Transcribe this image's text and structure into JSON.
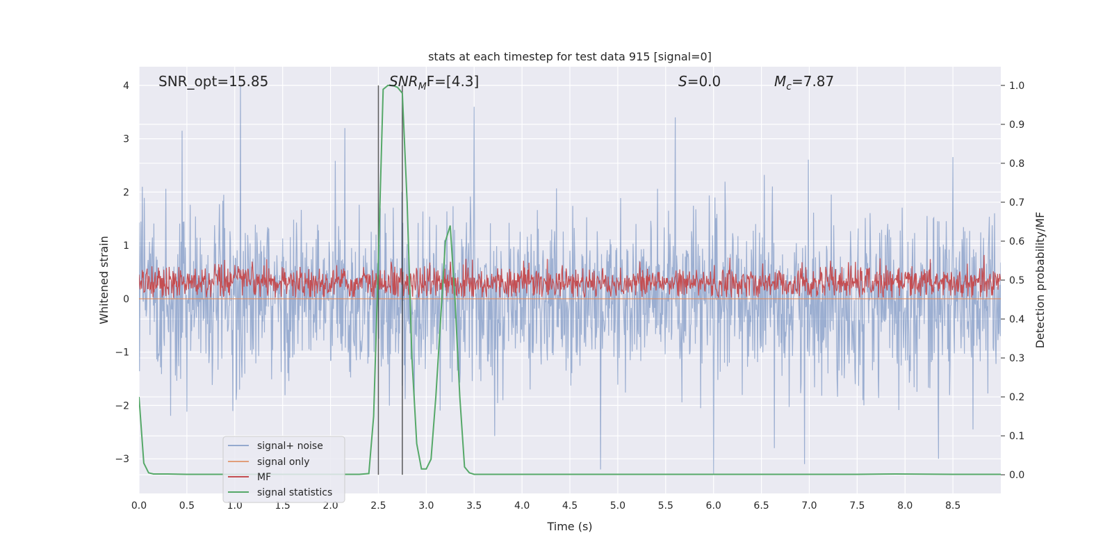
{
  "chart_data": {
    "type": "line",
    "title": "stats at each timestep for test data 915 [signal=0]",
    "xlabel": "Time (s)",
    "ylabel": "Whitened strain",
    "ylabel_right": "Detection probability/MF",
    "xlim": [
      0.0,
      9.0
    ],
    "ylim": [
      -3.65,
      4.35
    ],
    "ylim_right": [
      -0.048,
      1.048
    ],
    "xticks": [
      "0.0",
      "0.5",
      "1.0",
      "1.5",
      "2.0",
      "2.5",
      "3.0",
      "3.5",
      "4.0",
      "4.5",
      "5.0",
      "5.5",
      "6.0",
      "6.5",
      "7.0",
      "7.5",
      "8.0",
      "8.5"
    ],
    "yticks": [
      "4",
      "3",
      "2",
      "1",
      "0",
      "−1",
      "−2",
      "−3"
    ],
    "yticks_right": [
      "1.0",
      "0.9",
      "0.8",
      "0.7",
      "0.6",
      "0.5",
      "0.4",
      "0.3",
      "0.2",
      "0.1",
      "0.0"
    ],
    "grid": true,
    "legend_position": "lower-left",
    "annotations": {
      "snr_opt": "SNR_opt=15.85",
      "snr_mf_base": "SNR",
      "snr_mf_sub": "M",
      "snr_mf_rest": "F=[4.3]",
      "s_italic": "S",
      "s_rest": "=0.0",
      "mc_base": "M",
      "mc_sub": "c",
      "mc_rest": "=7.87"
    },
    "vlines": [
      2.5,
      2.75
    ],
    "series": [
      {
        "name": "signal+ noise",
        "color": "#4c72b0",
        "description_levels": {
          "typical_max": 1.8,
          "typical_min": -1.9,
          "peaks": [
            [
              1.06,
              4.0
            ],
            [
              5.6,
              3.4
            ],
            [
              3.5,
              3.6
            ],
            [
              2.15,
              3.2
            ],
            [
              0.45,
              3.15
            ],
            [
              6.0,
              -3.3
            ],
            [
              4.82,
              -3.2
            ],
            [
              6.95,
              -3.1
            ],
            [
              8.35,
              -3.0
            ]
          ]
        }
      },
      {
        "name": "signal only",
        "color": "#dd8452",
        "constant": 0.0
      },
      {
        "name": "MF",
        "color": "#c44e52",
        "baseline": 0.3,
        "spread": 0.35
      },
      {
        "name": "signal statistics",
        "color": "#55a868",
        "axis": "right",
        "x": [
          0.0,
          0.05,
          0.1,
          0.15,
          0.2,
          0.3,
          0.5,
          1.0,
          1.5,
          2.0,
          2.3,
          2.4,
          2.45,
          2.5,
          2.55,
          2.6,
          2.65,
          2.7,
          2.75,
          2.8,
          2.85,
          2.9,
          2.95,
          3.0,
          3.05,
          3.1,
          3.15,
          3.2,
          3.25,
          3.3,
          3.35,
          3.4,
          3.45,
          3.5,
          3.55,
          4.0,
          5.0,
          6.0,
          7.0,
          7.5,
          7.9,
          8.5,
          9.0
        ],
        "y": [
          0.2,
          0.03,
          0.005,
          0.002,
          0.002,
          0.002,
          0.001,
          0.001,
          0.001,
          0.001,
          0.001,
          0.003,
          0.15,
          0.55,
          0.99,
          1.0,
          1.0,
          0.995,
          0.98,
          0.7,
          0.3,
          0.08,
          0.015,
          0.015,
          0.04,
          0.2,
          0.4,
          0.6,
          0.64,
          0.45,
          0.2,
          0.02,
          0.005,
          0.001,
          0.001,
          0.001,
          0.001,
          0.001,
          0.001,
          0.001,
          0.002,
          0.001,
          0.001
        ]
      }
    ]
  }
}
